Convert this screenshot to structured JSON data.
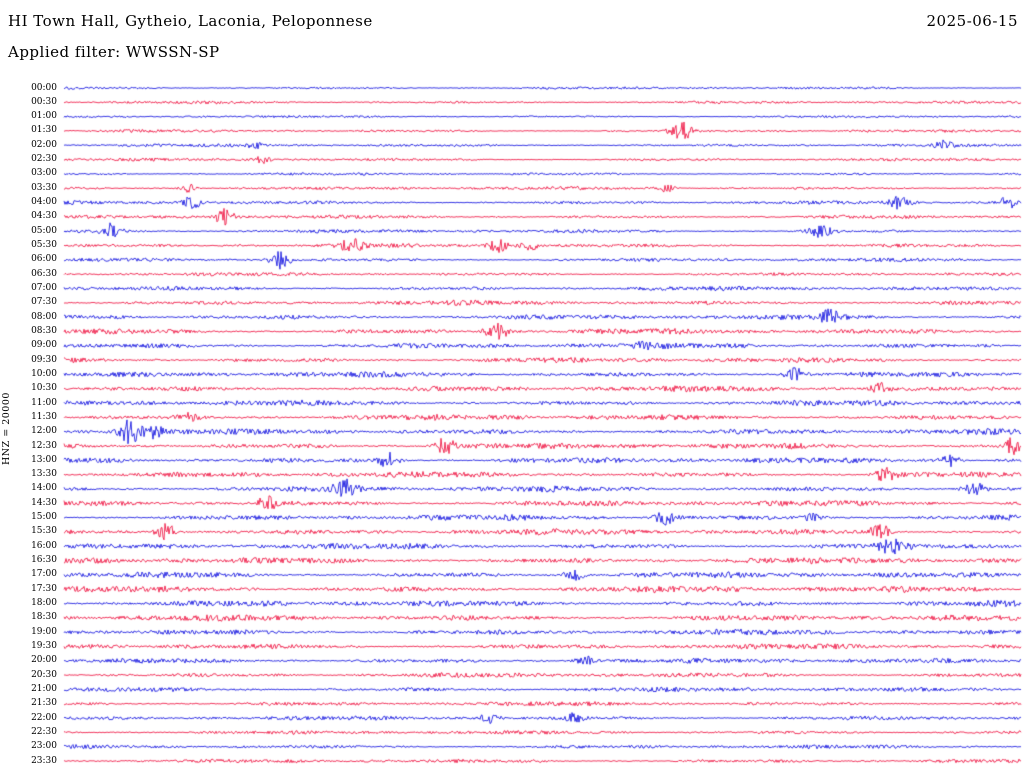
{
  "header": {
    "station_title": "HI Town Hall, Gytheio, Laconia, Peloponnese",
    "date": "2025-06-15",
    "filter_line": "Applied filter: WWSSN-SP"
  },
  "y_axis_label": "HNZ = 20000",
  "chart_data": {
    "type": "seismogram",
    "title": "HI Town Hall, Gytheio, Laconia, Peloponnese",
    "date": "2025-06-15",
    "filter": "WWSSN-SP",
    "channel_scale_label": "HNZ = 20000",
    "row_interval_minutes": 30,
    "x_range_minutes": [
      0,
      30
    ],
    "grid": false,
    "legend": false,
    "rows": [
      "00:00",
      "00:30",
      "01:00",
      "01:30",
      "02:00",
      "02:30",
      "03:00",
      "03:30",
      "04:00",
      "04:30",
      "05:00",
      "05:30",
      "06:00",
      "06:30",
      "07:00",
      "07:30",
      "08:00",
      "08:30",
      "09:00",
      "09:30",
      "10:00",
      "10:30",
      "11:00",
      "11:30",
      "12:00",
      "12:30",
      "13:00",
      "13:30",
      "14:00",
      "14:30",
      "15:00",
      "15:30",
      "16:00",
      "16:30",
      "17:00",
      "17:30",
      "18:00",
      "18:30",
      "19:00",
      "19:30",
      "20:00",
      "20:30",
      "21:00",
      "21:30",
      "22:00",
      "22:30",
      "23:00",
      "23:30"
    ],
    "trace_colors": {
      "even_rows": "#0000dd",
      "odd_rows": "#ee0033"
    },
    "row_noise_amplitude": [
      1.3,
      1.4,
      1.2,
      1.4,
      1.5,
      1.5,
      1.3,
      1.7,
      1.8,
      1.8,
      1.8,
      2.0,
      1.8,
      1.7,
      2.2,
      2.4,
      2.6,
      2.8,
      2.8,
      2.6,
      2.8,
      2.8,
      2.9,
      2.9,
      2.9,
      3.0,
      2.9,
      2.9,
      2.9,
      3.0,
      2.9,
      3.0,
      3.0,
      3.2,
      3.0,
      3.2,
      3.1,
      3.1,
      2.9,
      2.7,
      2.5,
      2.4,
      2.4,
      2.2,
      2.2,
      2.0,
      1.9,
      1.9
    ],
    "events": [
      {
        "row": "01:30",
        "x": 0.644,
        "amp": 11,
        "sigma": 7
      },
      {
        "row": "02:00",
        "x": 0.2,
        "amp": 3,
        "sigma": 6
      },
      {
        "row": "02:00",
        "x": 0.92,
        "amp": 4,
        "sigma": 6
      },
      {
        "row": "02:30",
        "x": 0.207,
        "amp": 4,
        "sigma": 6
      },
      {
        "row": "03:30",
        "x": 0.13,
        "amp": 4,
        "sigma": 6
      },
      {
        "row": "03:30",
        "x": 0.63,
        "amp": 3.5,
        "sigma": 6
      },
      {
        "row": "04:00",
        "x": 0.134,
        "amp": 7,
        "sigma": 7
      },
      {
        "row": "04:00",
        "x": 0.874,
        "amp": 6,
        "sigma": 7
      },
      {
        "row": "04:00",
        "x": 0.987,
        "amp": 7,
        "sigma": 6
      },
      {
        "row": "04:30",
        "x": 0.168,
        "amp": 8,
        "sigma": 7
      },
      {
        "row": "05:00",
        "x": 0.05,
        "amp": 8,
        "sigma": 7
      },
      {
        "row": "05:00",
        "x": 0.79,
        "amp": 6,
        "sigma": 8
      },
      {
        "row": "05:30",
        "x": 0.301,
        "amp": 6,
        "sigma": 8
      },
      {
        "row": "05:30",
        "x": 0.456,
        "amp": 7,
        "sigma": 7
      },
      {
        "row": "05:30",
        "x": 0.487,
        "amp": 5,
        "sigma": 6
      },
      {
        "row": "06:00",
        "x": 0.226,
        "amp": 9,
        "sigma": 7
      },
      {
        "row": "08:00",
        "x": 0.801,
        "amp": 7,
        "sigma": 7
      },
      {
        "row": "08:30",
        "x": 0.452,
        "amp": 8,
        "sigma": 8
      },
      {
        "row": "09:00",
        "x": 0.602,
        "amp": 4,
        "sigma": 6
      },
      {
        "row": "10:00",
        "x": 0.764,
        "amp": 6,
        "sigma": 8
      },
      {
        "row": "10:30",
        "x": 0.853,
        "amp": 6,
        "sigma": 7
      },
      {
        "row": "11:30",
        "x": 0.13,
        "amp": 4,
        "sigma": 6
      },
      {
        "row": "12:00",
        "x": 0.069,
        "amp": 12,
        "sigma": 8
      },
      {
        "row": "12:00",
        "x": 0.095,
        "amp": 7,
        "sigma": 6
      },
      {
        "row": "12:30",
        "x": 0.398,
        "amp": 8,
        "sigma": 7
      },
      {
        "row": "12:30",
        "x": 0.991,
        "amp": 9,
        "sigma": 6
      },
      {
        "row": "13:00",
        "x": 0.339,
        "amp": 8,
        "sigma": 7
      },
      {
        "row": "13:00",
        "x": 0.926,
        "amp": 6,
        "sigma": 7
      },
      {
        "row": "13:30",
        "x": 0.858,
        "amp": 7,
        "sigma": 7
      },
      {
        "row": "14:00",
        "x": 0.294,
        "amp": 9,
        "sigma": 8
      },
      {
        "row": "14:00",
        "x": 0.952,
        "amp": 7,
        "sigma": 7
      },
      {
        "row": "14:30",
        "x": 0.21,
        "amp": 8,
        "sigma": 7
      },
      {
        "row": "15:00",
        "x": 0.628,
        "amp": 6,
        "sigma": 7
      },
      {
        "row": "15:00",
        "x": 0.78,
        "amp": 5,
        "sigma": 7
      },
      {
        "row": "15:30",
        "x": 0.106,
        "amp": 9,
        "sigma": 7
      },
      {
        "row": "15:30",
        "x": 0.853,
        "amp": 7,
        "sigma": 7
      },
      {
        "row": "16:00",
        "x": 0.863,
        "amp": 7,
        "sigma": 8
      },
      {
        "row": "17:00",
        "x": 0.534,
        "amp": 5,
        "sigma": 7
      },
      {
        "row": "20:00",
        "x": 0.544,
        "amp": 5,
        "sigma": 7
      },
      {
        "row": "22:00",
        "x": 0.445,
        "amp": 5,
        "sigma": 7
      },
      {
        "row": "22:00",
        "x": 0.531,
        "amp": 5,
        "sigma": 7
      }
    ]
  }
}
